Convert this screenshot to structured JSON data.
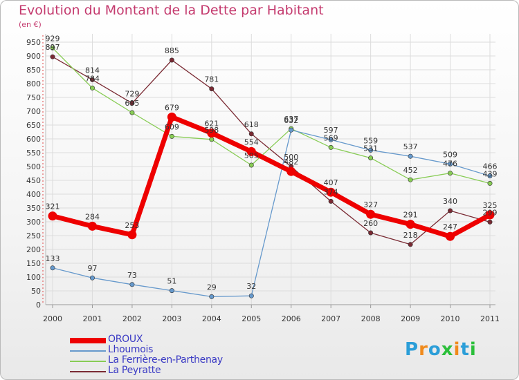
{
  "chart_data": {
    "type": "line",
    "title": "Evolution du Montant de la Dette par Habitant",
    "unit_label": "(en €)",
    "x": [
      "2000",
      "2001",
      "2002",
      "2003",
      "2004",
      "2005",
      "2006",
      "2007",
      "2008",
      "2009",
      "2010",
      "2011"
    ],
    "ylim": [
      0,
      950
    ],
    "yticks": [
      0,
      50,
      100,
      150,
      200,
      250,
      300,
      350,
      400,
      450,
      500,
      550,
      600,
      650,
      700,
      750,
      800,
      850,
      900,
      950
    ],
    "grid": true,
    "legend_position": "bottom-left",
    "series": [
      {
        "name": "OROUX",
        "color": "#ee0000",
        "values": [
          321,
          284,
          253,
          679,
          621,
          554,
          482,
          407,
          327,
          291,
          247,
          325
        ],
        "labels": [
          "321",
          "284",
          "253",
          "679",
          "621",
          "554",
          "482",
          "407",
          "327",
          "291",
          "247",
          "325"
        ]
      },
      {
        "name": "Lhoumois",
        "color": "#6699cc",
        "values": [
          133,
          97,
          73,
          51,
          29,
          32,
          632,
          597,
          559,
          537,
          509,
          466
        ],
        "labels": [
          "133",
          "97",
          "73",
          "51",
          "29",
          "32",
          "632",
          "597",
          "559",
          "537",
          "509",
          "466"
        ]
      },
      {
        "name": "La Ferrière-en-Parthenay",
        "color": "#88cc55",
        "values": [
          929,
          784,
          695,
          609,
          598,
          505,
          637,
          569,
          531,
          452,
          476,
          439
        ],
        "labels": [
          "929",
          "784",
          "695",
          "609",
          "598",
          "505",
          "637",
          "569",
          "531",
          "452",
          "476",
          "439"
        ]
      },
      {
        "name": "La Peyratte",
        "color": "#7a2a33",
        "values": [
          897,
          814,
          729,
          885,
          781,
          618,
          500,
          374,
          260,
          218,
          340,
          299
        ],
        "labels": [
          "897",
          "814",
          "729",
          "885",
          "781",
          "618",
          "500",
          "374",
          "260",
          "218",
          "340",
          "299"
        ]
      }
    ]
  },
  "logo": {
    "text": "Proxiti",
    "colors": [
      "#2b9ed8",
      "#f08a1c",
      "#2b9ed8",
      "#2bbf3a",
      "#f08a1c",
      "#2b9ed8",
      "#2bbf3a"
    ]
  }
}
